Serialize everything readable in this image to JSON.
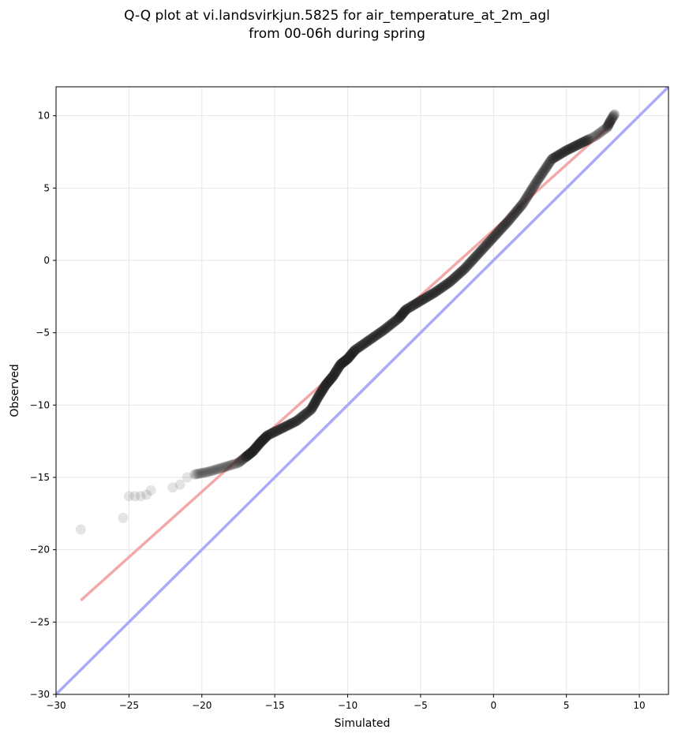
{
  "chart_data": {
    "type": "scatter",
    "title": "Q-Q plot at vi.landsvirkjun.5825 for air_temperature_at_2m_agl",
    "subtitle": "from 00-06h during spring",
    "xlabel": "Simulated",
    "ylabel": "Observed",
    "xlim": [
      -30,
      12
    ],
    "ylim": [
      -30,
      12
    ],
    "grid": true,
    "x_ticks": [
      -30,
      -25,
      -20,
      -15,
      -10,
      -5,
      0,
      5,
      10
    ],
    "y_ticks": [
      -30,
      -25,
      -20,
      -15,
      -10,
      -5,
      0,
      5,
      10
    ],
    "x_tick_labels": [
      "−30",
      "−25",
      "−20",
      "−15",
      "−10",
      "−5",
      "0",
      "5",
      "10"
    ],
    "y_tick_labels": [
      "−30",
      "−25",
      "−20",
      "−15",
      "−10",
      "−5",
      "0",
      "5",
      "10"
    ],
    "identity_line": {
      "color": "#aaaaf8",
      "from": [
        -30,
        -30
      ],
      "to": [
        12,
        12
      ]
    },
    "fit_line": {
      "color": "#f4a9a9",
      "from": [
        -28.3,
        -23.5
      ],
      "to": [
        8.3,
        9.6
      ]
    },
    "marker_color": "#222222",
    "quantile_curve": [
      [
        -28.3,
        -18.6
      ],
      [
        -25.4,
        -17.8
      ],
      [
        -25.0,
        -16.3
      ],
      [
        -24.6,
        -16.3
      ],
      [
        -24.2,
        -16.3
      ],
      [
        -23.8,
        -16.2
      ],
      [
        -23.5,
        -15.9
      ],
      [
        -22.0,
        -15.7
      ],
      [
        -21.5,
        -15.5
      ],
      [
        -21.0,
        -15.0
      ],
      [
        -20.5,
        -14.8
      ],
      [
        -19.5,
        -14.6
      ],
      [
        -18.5,
        -14.3
      ],
      [
        -17.5,
        -14.0
      ],
      [
        -17.0,
        -13.6
      ],
      [
        -16.5,
        -13.2
      ],
      [
        -16.0,
        -12.6
      ],
      [
        -15.5,
        -12.1
      ],
      [
        -14.5,
        -11.6
      ],
      [
        -13.5,
        -11.1
      ],
      [
        -12.5,
        -10.3
      ],
      [
        -12.0,
        -9.4
      ],
      [
        -11.5,
        -8.6
      ],
      [
        -11.0,
        -8.0
      ],
      [
        -10.5,
        -7.2
      ],
      [
        -10.0,
        -6.8
      ],
      [
        -9.5,
        -6.2
      ],
      [
        -8.5,
        -5.5
      ],
      [
        -7.5,
        -4.8
      ],
      [
        -6.5,
        -4.0
      ],
      [
        -6.0,
        -3.4
      ],
      [
        -5.0,
        -2.8
      ],
      [
        -4.0,
        -2.2
      ],
      [
        -3.0,
        -1.5
      ],
      [
        -2.0,
        -0.6
      ],
      [
        -1.0,
        0.5
      ],
      [
        0.0,
        1.6
      ],
      [
        1.0,
        2.7
      ],
      [
        2.0,
        3.9
      ],
      [
        3.0,
        5.5
      ],
      [
        4.0,
        7.0
      ],
      [
        5.0,
        7.6
      ],
      [
        6.0,
        8.1
      ],
      [
        7.0,
        8.6
      ],
      [
        7.8,
        9.2
      ],
      [
        8.0,
        9.6
      ],
      [
        8.3,
        10.1
      ]
    ]
  }
}
